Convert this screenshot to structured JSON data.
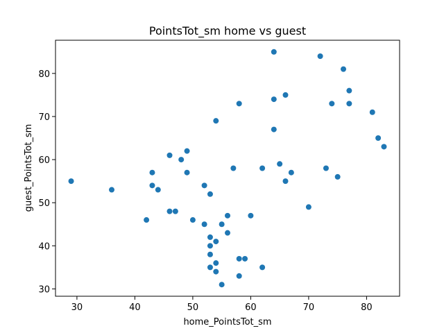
{
  "chart_data": {
    "type": "scatter",
    "title": "PointsTot_sm home vs guest",
    "xlabel": "home_PointsTot_sm",
    "ylabel": "guest_PointsTot_sm",
    "xlim": [
      26.3,
      85.7
    ],
    "ylim": [
      28.3,
      87.7
    ],
    "xticks": [
      30,
      40,
      50,
      60,
      70,
      80
    ],
    "yticks": [
      30,
      40,
      50,
      60,
      70,
      80
    ],
    "grid": false,
    "marker_color": "#1f77b4",
    "points": [
      {
        "x": 29,
        "y": 55
      },
      {
        "x": 36,
        "y": 53
      },
      {
        "x": 42,
        "y": 46
      },
      {
        "x": 43,
        "y": 57
      },
      {
        "x": 43,
        "y": 54
      },
      {
        "x": 44,
        "y": 53
      },
      {
        "x": 46,
        "y": 61
      },
      {
        "x": 46,
        "y": 48
      },
      {
        "x": 47,
        "y": 48
      },
      {
        "x": 48,
        "y": 60
      },
      {
        "x": 49,
        "y": 62
      },
      {
        "x": 49,
        "y": 57
      },
      {
        "x": 50,
        "y": 46
      },
      {
        "x": 52,
        "y": 54
      },
      {
        "x": 52,
        "y": 45
      },
      {
        "x": 53,
        "y": 52
      },
      {
        "x": 53,
        "y": 42
      },
      {
        "x": 53,
        "y": 40
      },
      {
        "x": 53,
        "y": 38
      },
      {
        "x": 53,
        "y": 35
      },
      {
        "x": 54,
        "y": 69
      },
      {
        "x": 54,
        "y": 41
      },
      {
        "x": 54,
        "y": 36
      },
      {
        "x": 54,
        "y": 34
      },
      {
        "x": 55,
        "y": 45
      },
      {
        "x": 55,
        "y": 31
      },
      {
        "x": 56,
        "y": 47
      },
      {
        "x": 56,
        "y": 43
      },
      {
        "x": 57,
        "y": 58
      },
      {
        "x": 58,
        "y": 73
      },
      {
        "x": 58,
        "y": 37
      },
      {
        "x": 58,
        "y": 33
      },
      {
        "x": 59,
        "y": 37
      },
      {
        "x": 60,
        "y": 47
      },
      {
        "x": 62,
        "y": 58
      },
      {
        "x": 62,
        "y": 35
      },
      {
        "x": 64,
        "y": 85
      },
      {
        "x": 64,
        "y": 74
      },
      {
        "x": 64,
        "y": 67
      },
      {
        "x": 65,
        "y": 59
      },
      {
        "x": 66,
        "y": 75
      },
      {
        "x": 66,
        "y": 55
      },
      {
        "x": 67,
        "y": 57
      },
      {
        "x": 70,
        "y": 49
      },
      {
        "x": 72,
        "y": 84
      },
      {
        "x": 73,
        "y": 58
      },
      {
        "x": 74,
        "y": 73
      },
      {
        "x": 75,
        "y": 56
      },
      {
        "x": 76,
        "y": 81
      },
      {
        "x": 77,
        "y": 76
      },
      {
        "x": 77,
        "y": 73
      },
      {
        "x": 81,
        "y": 71
      },
      {
        "x": 82,
        "y": 65
      },
      {
        "x": 83,
        "y": 63
      }
    ]
  }
}
